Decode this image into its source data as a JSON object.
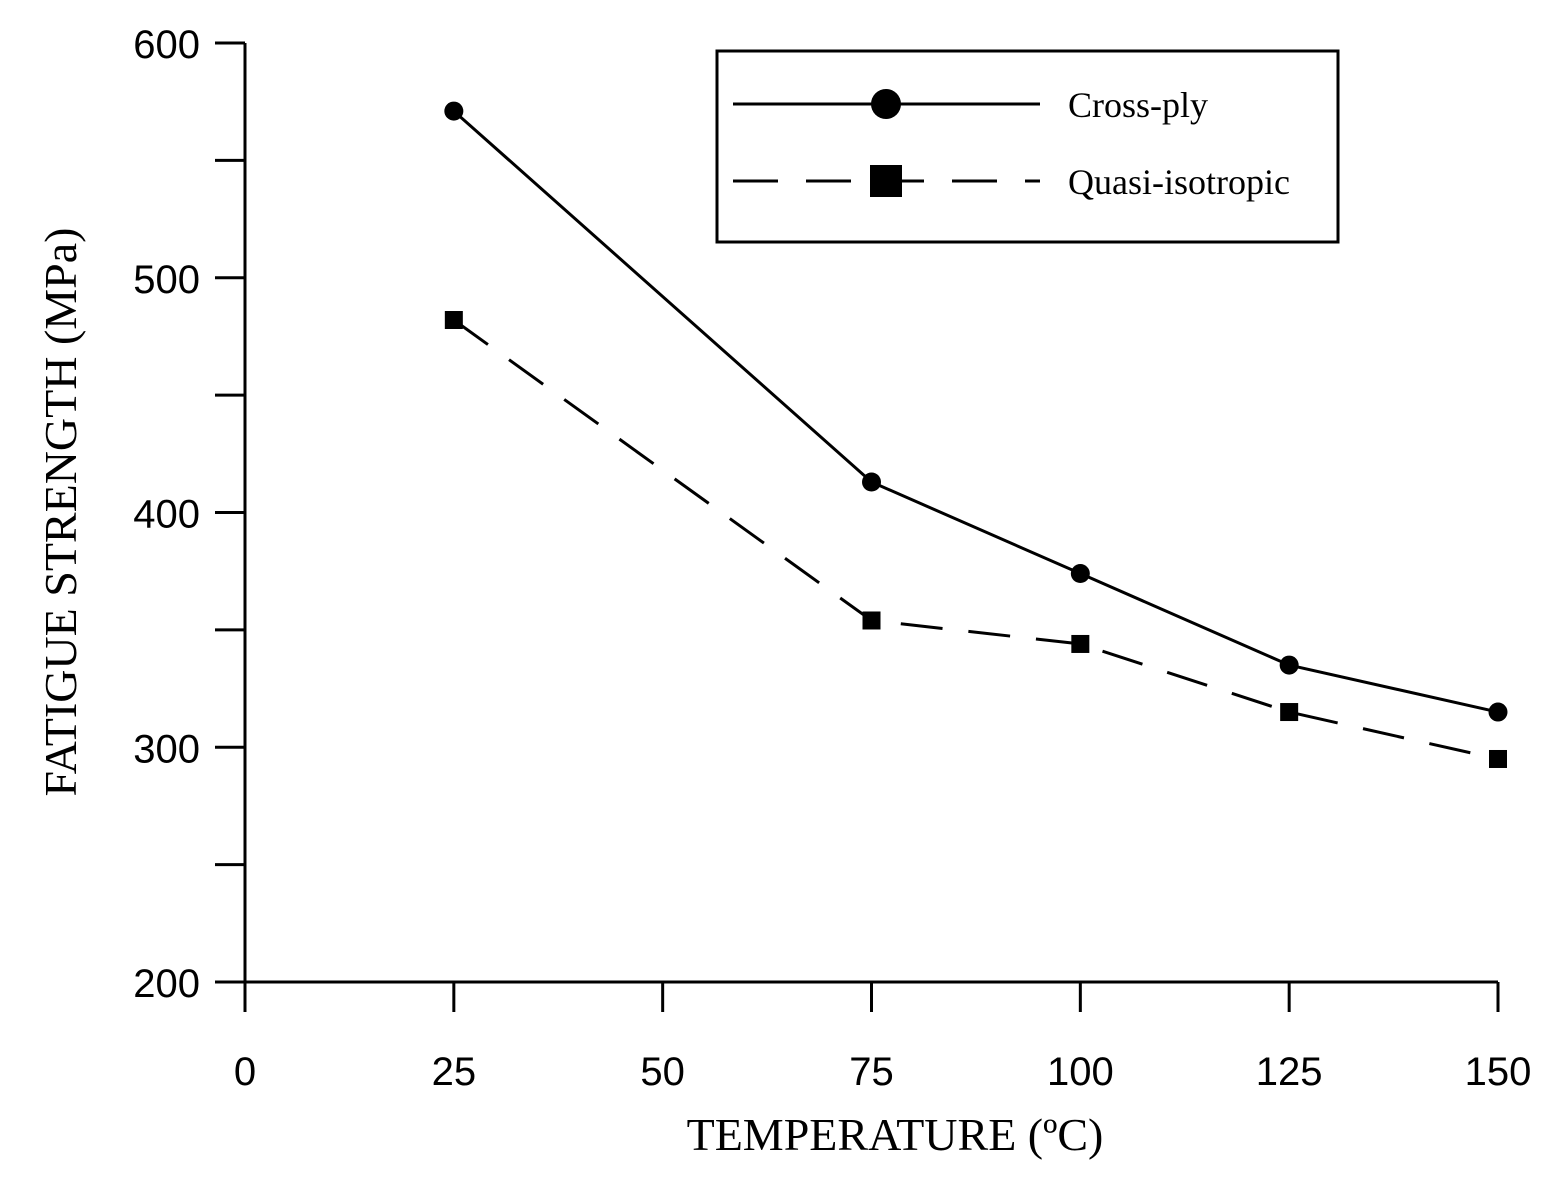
{
  "chart_data": {
    "type": "line",
    "title": "",
    "xlabel": "TEMPERATURE (ºC)",
    "ylabel": "FATIGUE STRENGTH (MPa)",
    "xlim": [
      0,
      150
    ],
    "ylim": [
      200,
      600
    ],
    "x_ticks": [
      0,
      25,
      50,
      75,
      100,
      125,
      150
    ],
    "y_ticks_labeled": [
      200,
      300,
      400,
      500,
      600
    ],
    "y_ticks_minor": [
      250,
      350,
      450,
      550
    ],
    "grid": false,
    "legend_position": "top-right",
    "series": [
      {
        "name": "Cross-ply",
        "marker": "circle",
        "line_style": "solid",
        "x": [
          25,
          75,
          100,
          125,
          150
        ],
        "y": [
          571,
          413,
          374,
          335,
          315
        ]
      },
      {
        "name": "Quasi-isotropic",
        "marker": "square",
        "line_style": "dashed",
        "x": [
          25,
          75,
          100,
          125,
          150
        ],
        "y": [
          482,
          354,
          344,
          315,
          295
        ]
      }
    ]
  }
}
